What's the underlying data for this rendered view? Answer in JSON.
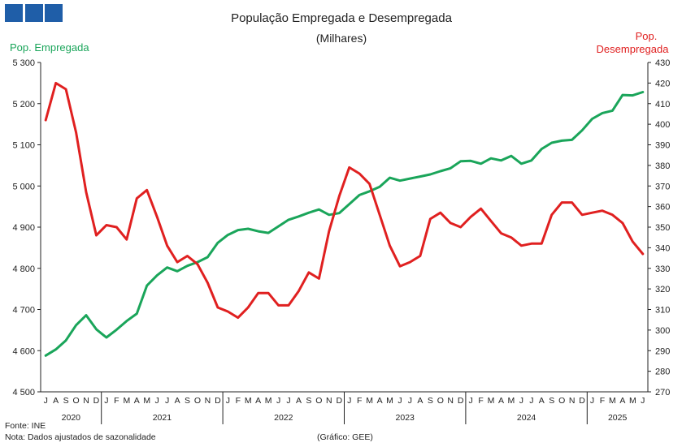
{
  "header": {
    "logo_colors": [
      "#1f5ea8",
      "#1f5ea8",
      "#1f5ea8"
    ]
  },
  "title": "População  Empregada  e Desempregada",
  "subtitle": "(Milhares)",
  "left_axis_label": "Pop. Empregada",
  "right_axis_label_line1": "Pop.",
  "right_axis_label_line2": "Desempregada",
  "footer": {
    "source": "Fonte: INE",
    "note": "Nota: Dados ajustados de sazonalidade",
    "credit": "(Gráfico: GEE)"
  },
  "colors": {
    "employed": "#1aa55a",
    "unemployed": "#e02020",
    "axis": "#222222"
  },
  "chart_data": {
    "type": "line",
    "title": "População  Empregada  e Desempregada",
    "subtitle": "(Milhares)",
    "x_month_labels": [
      "J",
      "A",
      "S",
      "O",
      "N",
      "D",
      "J",
      "F",
      "M",
      "A",
      "M",
      "J",
      "J",
      "A",
      "S",
      "O",
      "N",
      "D",
      "J",
      "F",
      "M",
      "A",
      "M",
      "J",
      "J",
      "A",
      "S",
      "O",
      "N",
      "D",
      "J",
      "F",
      "M",
      "A",
      "M",
      "J",
      "J",
      "A",
      "S",
      "O",
      "N",
      "D",
      "J",
      "F",
      "M",
      "A",
      "M",
      "J",
      "J",
      "A",
      "S",
      "O",
      "N",
      "D",
      "J",
      "F",
      "M",
      "A",
      "M",
      "J"
    ],
    "years": [
      {
        "label": "2020",
        "months": 6
      },
      {
        "label": "2021",
        "months": 12
      },
      {
        "label": "2022",
        "months": 12
      },
      {
        "label": "2023",
        "months": 12
      },
      {
        "label": "2024",
        "months": 12
      },
      {
        "label": "2025",
        "months": 6
      }
    ],
    "y_left": {
      "label": "Pop. Empregada",
      "range": [
        4500,
        5300
      ],
      "ticks": [
        4500,
        4600,
        4700,
        4800,
        4900,
        5000,
        5100,
        5200,
        5300
      ],
      "tick_labels": [
        "4 500",
        "4 600",
        "4 700",
        "4 800",
        "4 900",
        "5 000",
        "5 100",
        "5 200",
        "5 300"
      ]
    },
    "y_right": {
      "label": "Pop. Desempregada",
      "range": [
        270,
        430
      ],
      "ticks": [
        270,
        280,
        290,
        300,
        310,
        320,
        330,
        340,
        350,
        360,
        370,
        380,
        390,
        400,
        410,
        420,
        430
      ]
    },
    "series": [
      {
        "name": "Pop. Empregada",
        "axis": "left",
        "color": "#1aa55a",
        "values": [
          4588,
          4603,
          4625,
          4662,
          4686,
          4652,
          4632,
          4651,
          4672,
          4690,
          4758,
          4783,
          4802,
          4793,
          4806,
          4815,
          4827,
          4862,
          4881,
          4893,
          4896,
          4890,
          4886,
          4902,
          4918,
          4926,
          4935,
          4943,
          4930,
          4934,
          4956,
          4978,
          4987,
          4998,
          5020,
          5013,
          5018,
          5023,
          5028,
          5036,
          5043,
          5060,
          5061,
          5054,
          5067,
          5062,
          5073,
          5054,
          5062,
          5090,
          5105,
          5110,
          5112,
          5135,
          5163,
          5177,
          5183,
          5221,
          5220,
          5228
        ]
      },
      {
        "name": "Pop. Desempregada",
        "axis": "right",
        "color": "#e02020",
        "values": [
          402,
          420,
          417,
          396,
          367,
          346,
          351,
          350,
          344,
          364,
          368,
          355,
          341,
          333,
          336,
          332,
          323,
          311,
          309,
          306,
          311,
          318,
          318,
          312,
          312,
          319,
          328,
          325,
          348,
          365,
          379,
          376,
          371,
          356,
          341,
          331,
          333,
          336,
          354,
          357,
          352,
          350,
          355,
          359,
          353,
          347,
          345,
          341,
          342,
          342,
          356,
          362,
          362,
          356,
          357,
          358,
          356,
          352,
          343,
          337
        ]
      }
    ]
  }
}
